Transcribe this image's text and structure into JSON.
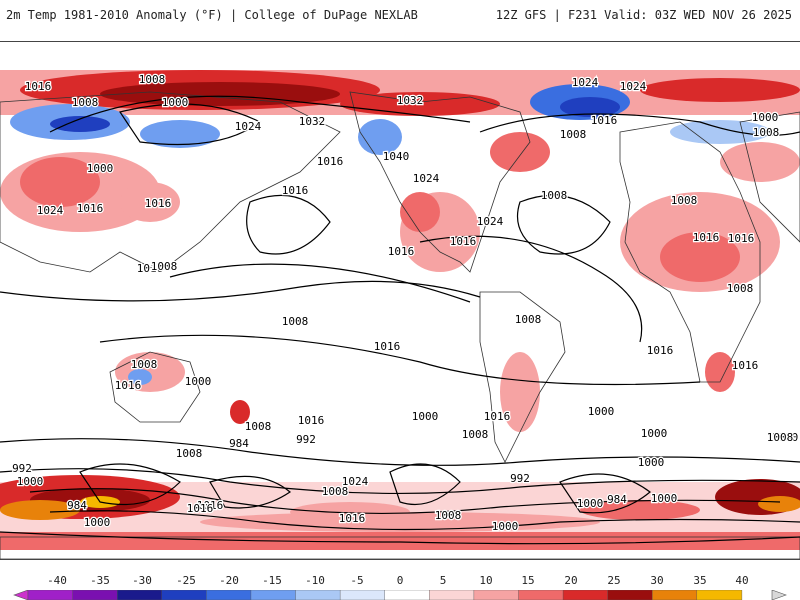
{
  "header": {
    "title_left": "2m Temp 1981-2010 Anomaly (°F) | College of DuPage NEXLAB",
    "title_right": "12Z GFS | F231 Valid: 03Z WED NOV 26 2025"
  },
  "colorbar": {
    "ticks": [
      "-40",
      "-35",
      "-30",
      "-25",
      "-20",
      "-15",
      "-10",
      "-5",
      "0",
      "5",
      "10",
      "15",
      "20",
      "25",
      "30",
      "35",
      "40"
    ],
    "colors": [
      "#cc33cc",
      "#a020c8",
      "#7a10b0",
      "#1a1a8c",
      "#1f3fbf",
      "#3a6ee0",
      "#6f9ef0",
      "#aac8f5",
      "#dbe7fb",
      "#ffffff",
      "#fbd5d5",
      "#f6a3a3",
      "#ef6a6a",
      "#d92a2a",
      "#9a0e0e",
      "#e8820a",
      "#f5b800",
      "#d8d8d8"
    ]
  },
  "map": {
    "isobar_labels": [
      {
        "text": "1016",
        "region": "n-asia-w"
      },
      {
        "text": "1008",
        "region": "arctic"
      },
      {
        "text": "1000",
        "region": "arctic"
      },
      {
        "text": "1008",
        "region": "n-asia"
      },
      {
        "text": "1000",
        "region": "asia"
      },
      {
        "text": "1024",
        "region": "asia"
      },
      {
        "text": "1016",
        "region": "asia"
      },
      {
        "text": "1016",
        "region": "china"
      },
      {
        "text": "1024",
        "region": "mongolia"
      },
      {
        "text": "1032",
        "region": "siberia"
      },
      {
        "text": "1016",
        "region": "pacific"
      },
      {
        "text": "1016",
        "region": "pacific"
      },
      {
        "text": "1032",
        "region": "alaska"
      },
      {
        "text": "1040",
        "region": "canada"
      },
      {
        "text": "1024",
        "region": "canada"
      },
      {
        "text": "1024",
        "region": "us"
      },
      {
        "text": "1016",
        "region": "atlantic"
      },
      {
        "text": "1016",
        "region": "atlantic"
      },
      {
        "text": "1024",
        "region": "greenland"
      },
      {
        "text": "1024",
        "region": "greenland"
      },
      {
        "text": "1016",
        "region": "scandinavia"
      },
      {
        "text": "1008",
        "region": "atlantic"
      },
      {
        "text": "1008",
        "region": "n-atlantic"
      },
      {
        "text": "1000",
        "region": "europe"
      },
      {
        "text": "1008",
        "region": "europe"
      },
      {
        "text": "1008",
        "region": "africa"
      },
      {
        "text": "1016",
        "region": "africa"
      },
      {
        "text": "1016",
        "region": "africa"
      },
      {
        "text": "1008",
        "region": "africa"
      },
      {
        "text": "1016",
        "region": "n-pacific"
      },
      {
        "text": "1008",
        "region": "indonesia"
      },
      {
        "text": "1008",
        "region": "pacific"
      },
      {
        "text": "1008",
        "region": "s-america"
      },
      {
        "text": "1016",
        "region": "s-pacific"
      },
      {
        "text": "1016",
        "region": "s-atlantic"
      },
      {
        "text": "1016",
        "region": "s-africa"
      },
      {
        "text": "1008",
        "region": "australia"
      },
      {
        "text": "1016",
        "region": "australia"
      },
      {
        "text": "1000",
        "region": "australia"
      },
      {
        "text": "1016",
        "region": "s-pacific"
      },
      {
        "text": "1000",
        "region": "s-pacific"
      },
      {
        "text": "1016",
        "region": "s-america"
      },
      {
        "text": "1008",
        "region": "southern-ocean"
      },
      {
        "text": "984",
        "region": "southern-ocean"
      },
      {
        "text": "992",
        "region": "southern-ocean"
      },
      {
        "text": "1000",
        "region": "southern-ocean"
      },
      {
        "text": "1008",
        "region": "southern-ocean"
      },
      {
        "text": "1000",
        "region": "southern-ocean"
      },
      {
        "text": "1000",
        "region": "southern-ocean"
      },
      {
        "text": "1008",
        "region": "southern-ocean"
      },
      {
        "text": "992",
        "region": "southern-ocean"
      },
      {
        "text": "1000",
        "region": "southern-ocean"
      },
      {
        "text": "984",
        "region": "southern-ocean"
      },
      {
        "text": "1000",
        "region": "antarctica"
      },
      {
        "text": "1016",
        "region": "antarctica"
      },
      {
        "text": "1024",
        "region": "antarctica"
      },
      {
        "text": "1008",
        "region": "antarctica"
      },
      {
        "text": "992",
        "region": "antarctica"
      },
      {
        "text": "984",
        "region": "antarctica"
      },
      {
        "text": "1000",
        "region": "antarctica"
      },
      {
        "text": "1008",
        "region": "antarctica"
      },
      {
        "text": "1016",
        "region": "antarctica"
      },
      {
        "text": "1000",
        "region": "antarctica"
      },
      {
        "text": "1000",
        "region": "antarctica"
      },
      {
        "text": "1008",
        "region": "antarctica"
      },
      {
        "text": "1000",
        "region": "antarctica"
      },
      {
        "text": "1016",
        "region": "antarctica"
      }
    ]
  }
}
